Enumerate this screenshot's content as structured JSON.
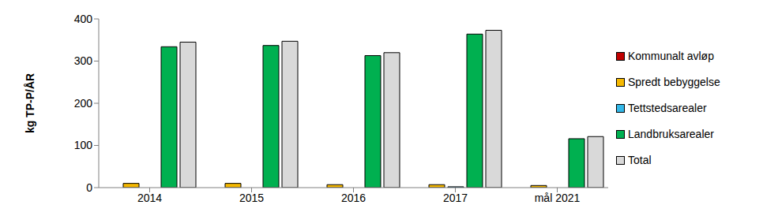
{
  "chart_data": {
    "type": "bar",
    "y_label": "kg TP-P/ÅR",
    "categories": [
      "2014",
      "2015",
      "2016",
      "2017",
      "mål 2021"
    ],
    "series": [
      {
        "name": "Kommunalt avløp",
        "color": "#c00000",
        "values": [
          0,
          0,
          0,
          0,
          0
        ]
      },
      {
        "name": "Spredt bebyggelse",
        "color": "#f5b800",
        "values": [
          10,
          10,
          7,
          7,
          5
        ]
      },
      {
        "name": "Tettstedsarealer",
        "color": "#33b8e8",
        "values": [
          0,
          0,
          0,
          2,
          0
        ]
      },
      {
        "name": "Landbruksarealer",
        "color": "#00b050",
        "values": [
          334,
          337,
          313,
          364,
          116
        ]
      },
      {
        "name": "Total",
        "color": "#d9d9d9",
        "values": [
          345,
          347,
          320,
          373,
          121
        ]
      }
    ],
    "ylim": [
      0,
      400
    ],
    "yticks": [
      0,
      100,
      200,
      300,
      400
    ],
    "grid": false,
    "legend": "right"
  }
}
